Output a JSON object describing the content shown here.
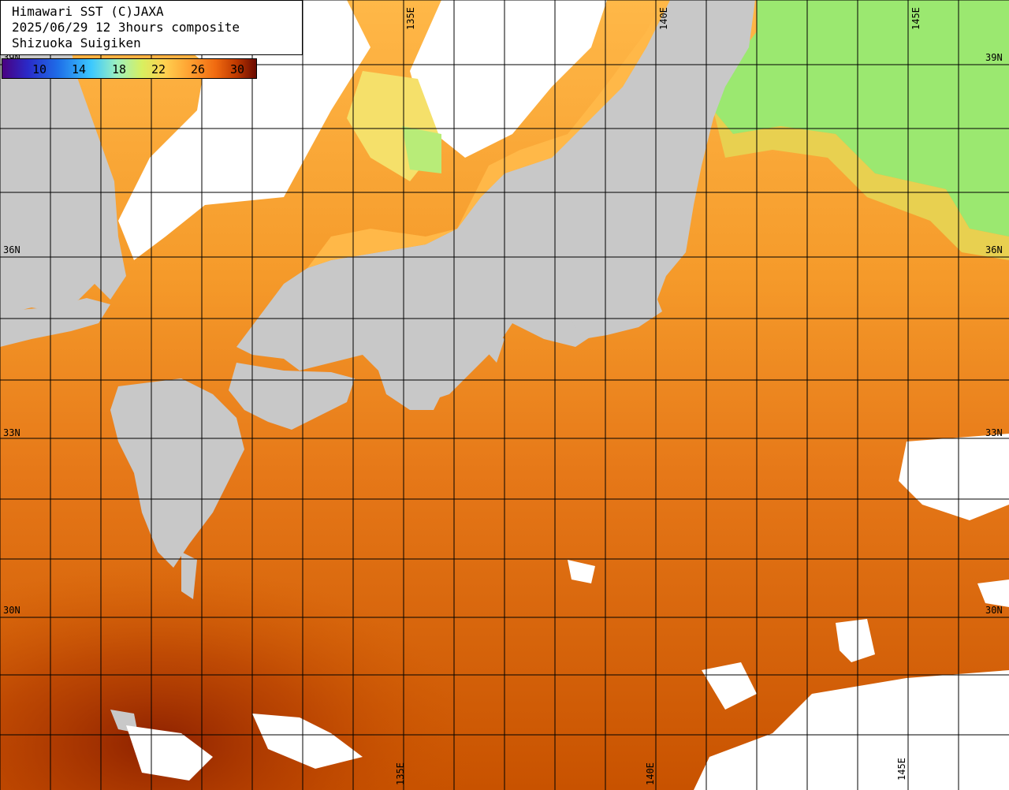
{
  "title": {
    "line1": "Himawari SST (C)JAXA",
    "line2": "2025/06/29 12 3hours composite",
    "line3": "Shizuoka Suigiken"
  },
  "colorbar": {
    "ticks": [
      "10",
      "14",
      "18",
      "22",
      "26",
      "30"
    ]
  },
  "lat_labels": [
    "39N",
    "36N",
    "33N",
    "30N"
  ],
  "lon_labels": [
    "135E",
    "140E",
    "145E"
  ],
  "colors": {
    "land": "#c8c8c8",
    "cloud": "#ffffff",
    "sst_cool": "#7ee882",
    "sst_mild": "#ffb040",
    "sst_warm": "#f08a20",
    "sst_hot": "#d05a00",
    "sst_hottest": "#a02800",
    "grid": "#000000"
  }
}
